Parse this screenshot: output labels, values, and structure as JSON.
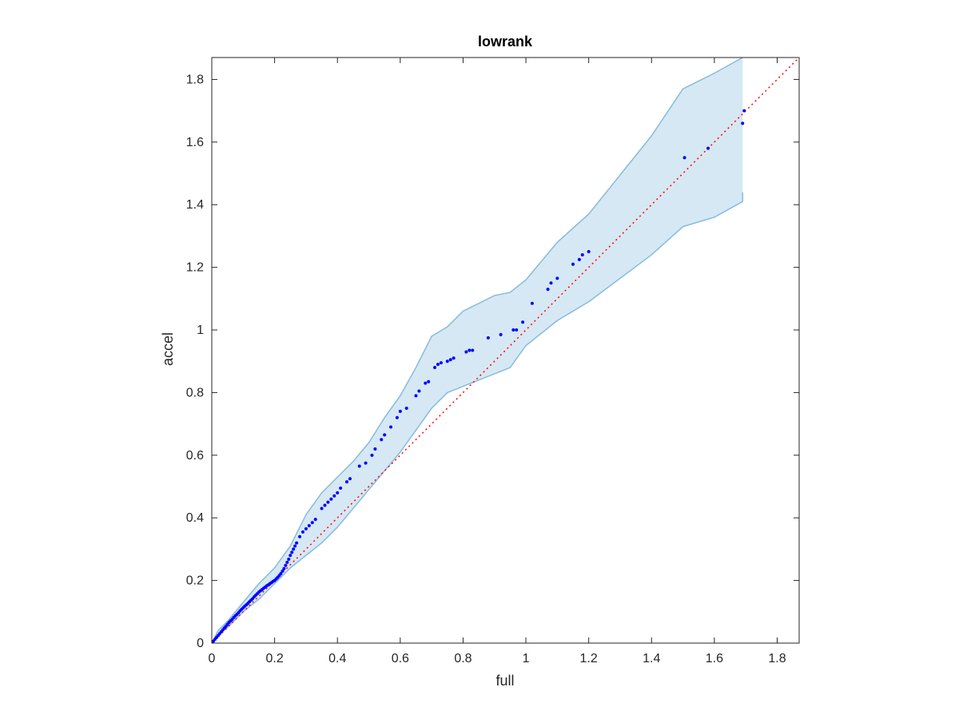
{
  "chart_data": {
    "type": "scatter",
    "title": "lowrank",
    "xlabel": "full",
    "ylabel": "accel",
    "xlim": [
      0,
      1.87
    ],
    "ylim": [
      0,
      1.87
    ],
    "x_ticks": [
      "0",
      "0.2",
      "0.4",
      "0.6",
      "0.8",
      "1",
      "1.2",
      "1.4",
      "1.6",
      "1.8"
    ],
    "y_ticks": [
      "0",
      "0.2",
      "0.4",
      "0.6",
      "0.8",
      "1",
      "1.2",
      "1.4",
      "1.6",
      "1.8"
    ],
    "grid": false,
    "colors": {
      "points": "#0000ff",
      "band_fill": "#d6e8f4",
      "band_edge": "#86bbdd",
      "reference_line": "#ff0000",
      "axes": "#262626"
    },
    "series": [
      {
        "type": "scatter",
        "x": [
          0.005,
          0.01,
          0.015,
          0.02,
          0.025,
          0.03,
          0.035,
          0.04,
          0.045,
          0.05,
          0.055,
          0.06,
          0.065,
          0.07,
          0.075,
          0.08,
          0.085,
          0.09,
          0.095,
          0.1,
          0.105,
          0.11,
          0.115,
          0.12,
          0.125,
          0.13,
          0.135,
          0.14,
          0.145,
          0.15,
          0.155,
          0.16,
          0.165,
          0.17,
          0.175,
          0.18,
          0.185,
          0.19,
          0.195,
          0.2,
          0.205,
          0.21,
          0.215,
          0.22,
          0.225,
          0.23,
          0.235,
          0.24,
          0.245,
          0.25,
          0.255,
          0.26,
          0.265,
          0.27,
          0.28,
          0.29,
          0.3,
          0.31,
          0.32,
          0.33,
          0.35,
          0.36,
          0.37,
          0.38,
          0.39,
          0.4,
          0.41,
          0.43,
          0.44,
          0.47,
          0.49,
          0.51,
          0.52,
          0.54,
          0.55,
          0.57,
          0.59,
          0.6,
          0.62,
          0.65,
          0.66,
          0.68,
          0.69,
          0.71,
          0.72,
          0.73,
          0.75,
          0.76,
          0.77,
          0.81,
          0.82,
          0.83,
          0.88,
          0.92,
          0.96,
          0.97,
          0.99,
          1.02,
          1.07,
          1.08,
          1.1,
          1.15,
          1.17,
          1.18,
          1.2,
          1.505,
          1.58,
          1.69,
          1.695
        ],
        "y": [
          0.006,
          0.012,
          0.018,
          0.024,
          0.03,
          0.036,
          0.042,
          0.048,
          0.054,
          0.06,
          0.066,
          0.071,
          0.076,
          0.082,
          0.087,
          0.092,
          0.097,
          0.103,
          0.108,
          0.113,
          0.118,
          0.122,
          0.127,
          0.132,
          0.137,
          0.142,
          0.148,
          0.153,
          0.158,
          0.163,
          0.167,
          0.171,
          0.175,
          0.179,
          0.183,
          0.186,
          0.19,
          0.193,
          0.197,
          0.2,
          0.205,
          0.21,
          0.216,
          0.222,
          0.23,
          0.238,
          0.248,
          0.258,
          0.268,
          0.28,
          0.29,
          0.3,
          0.31,
          0.32,
          0.34,
          0.355,
          0.365,
          0.375,
          0.385,
          0.395,
          0.43,
          0.44,
          0.45,
          0.46,
          0.47,
          0.48,
          0.495,
          0.515,
          0.525,
          0.565,
          0.575,
          0.6,
          0.62,
          0.65,
          0.665,
          0.69,
          0.72,
          0.74,
          0.75,
          0.79,
          0.805,
          0.83,
          0.835,
          0.88,
          0.89,
          0.895,
          0.9,
          0.905,
          0.91,
          0.93,
          0.935,
          0.935,
          0.975,
          0.985,
          1.0,
          1.0,
          1.025,
          1.085,
          1.13,
          1.15,
          1.165,
          1.21,
          1.225,
          1.24,
          1.25,
          1.55,
          1.58,
          1.66,
          1.7
        ]
      },
      {
        "type": "area-band",
        "x": [
          0,
          0.02,
          0.05,
          0.1,
          0.15,
          0.2,
          0.25,
          0.3,
          0.35,
          0.4,
          0.45,
          0.5,
          0.55,
          0.6,
          0.65,
          0.7,
          0.75,
          0.8,
          0.9,
          0.95,
          1.0,
          1.1,
          1.2,
          1.4,
          1.5,
          1.6,
          1.69
        ],
        "upper": [
          0,
          0.04,
          0.07,
          0.13,
          0.19,
          0.24,
          0.31,
          0.41,
          0.48,
          0.53,
          0.58,
          0.64,
          0.72,
          0.79,
          0.88,
          0.98,
          1.01,
          1.06,
          1.11,
          1.12,
          1.16,
          1.28,
          1.37,
          1.62,
          1.77,
          1.82,
          1.87
        ],
        "lower": [
          0,
          0.025,
          0.05,
          0.1,
          0.14,
          0.19,
          0.24,
          0.28,
          0.32,
          0.37,
          0.43,
          0.49,
          0.55,
          0.61,
          0.68,
          0.75,
          0.8,
          0.82,
          0.86,
          0.88,
          0.95,
          1.03,
          1.09,
          1.24,
          1.33,
          1.36,
          1.41
        ],
        "edge_end_lower": 1.44
      },
      {
        "type": "reference-line",
        "x": [
          0,
          1.87
        ],
        "y": [
          0,
          1.87
        ]
      }
    ]
  }
}
